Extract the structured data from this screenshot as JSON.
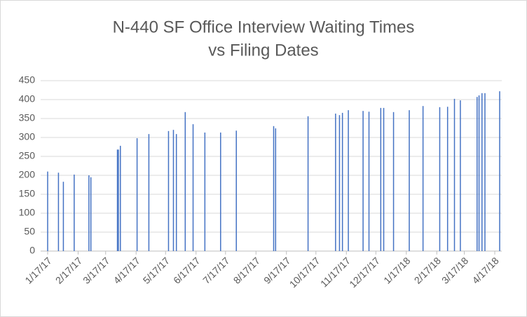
{
  "chart_data": {
    "type": "bar",
    "title": [
      "N-440 SF Office Interview Waiting Times",
      "vs Filing Dates"
    ],
    "x": [
      "2017-01-17",
      "2017-01-28",
      "2017-02-02",
      "2017-02-13",
      "2017-02-28",
      "2017-03-02",
      "2017-03-29",
      "2017-03-30",
      "2017-04-01",
      "2017-04-18",
      "2017-04-30",
      "2017-05-20",
      "2017-05-25",
      "2017-05-28",
      "2017-06-06",
      "2017-06-14",
      "2017-06-26",
      "2017-07-12",
      "2017-07-28",
      "2017-09-04",
      "2017-09-06",
      "2017-10-09",
      "2017-11-06",
      "2017-11-10",
      "2017-11-13",
      "2017-11-19",
      "2017-12-04",
      "2017-12-10",
      "2017-12-22",
      "2017-12-25",
      "2018-01-04",
      "2018-01-20",
      "2018-02-03",
      "2018-02-20",
      "2018-02-28",
      "2018-03-07",
      "2018-03-13",
      "2018-03-30",
      "2018-04-01",
      "2018-04-04",
      "2018-04-07",
      "2018-04-22"
    ],
    "values": [
      210,
      207,
      183,
      202,
      200,
      195,
      268,
      268,
      278,
      298,
      309,
      317,
      320,
      309,
      367,
      335,
      313,
      313,
      318,
      330,
      324,
      356,
      363,
      359,
      365,
      372,
      370,
      368,
      378,
      378,
      367,
      372,
      383,
      380,
      381,
      402,
      398,
      407,
      411,
      417,
      417,
      422
    ],
    "color": "#4472c4",
    "xlim": [
      "2017-01-17",
      "2018-04-22"
    ],
    "xticks": [
      {
        "value": "2017-01-17",
        "label": "1/17/17"
      },
      {
        "value": "2017-02-17",
        "label": "2/17/17"
      },
      {
        "value": "2017-03-17",
        "label": "3/17/17"
      },
      {
        "value": "2017-04-17",
        "label": "4/17/17"
      },
      {
        "value": "2017-05-17",
        "label": "5/17/17"
      },
      {
        "value": "2017-06-17",
        "label": "6/17/17"
      },
      {
        "value": "2017-07-17",
        "label": "7/17/17"
      },
      {
        "value": "2017-08-17",
        "label": "8/17/17"
      },
      {
        "value": "2017-09-17",
        "label": "9/17/17"
      },
      {
        "value": "2017-10-17",
        "label": "10/17/17"
      },
      {
        "value": "2017-11-17",
        "label": "11/17/17"
      },
      {
        "value": "2017-12-17",
        "label": "12/17/17"
      },
      {
        "value": "2018-01-17",
        "label": "1/17/18"
      },
      {
        "value": "2018-02-17",
        "label": "2/17/18"
      },
      {
        "value": "2018-03-17",
        "label": "3/17/18"
      },
      {
        "value": "2018-04-17",
        "label": "4/17/18"
      }
    ],
    "ylim": [
      0,
      450
    ],
    "yticks": [
      0,
      50,
      100,
      150,
      200,
      250,
      300,
      350,
      400,
      450
    ],
    "grid": true
  }
}
